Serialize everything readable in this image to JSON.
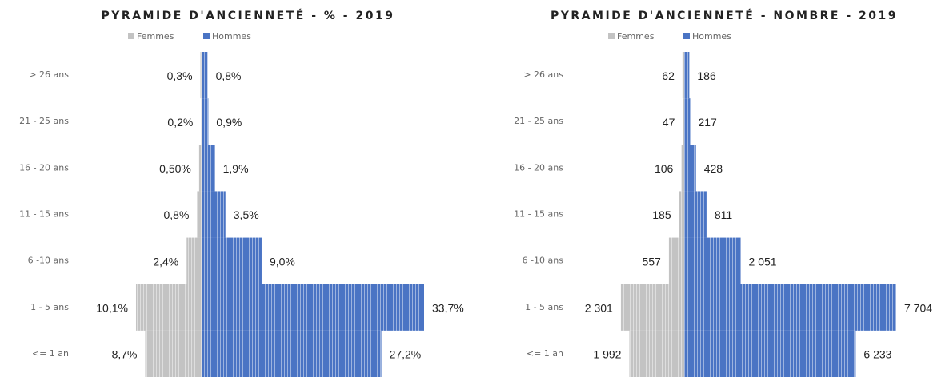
{
  "chart_data": [
    {
      "type": "pyramid",
      "title": "PYRAMIDE D'ANCIENNETÉ - % - 2019",
      "categories": [
        "> 26 ans",
        "21 - 25 ans",
        "16 - 20 ans",
        "11 - 15 ans",
        "6 -10 ans",
        "1 - 5 ans",
        "<= 1 an"
      ],
      "series": [
        {
          "name": "Femmes",
          "color": "#c3c3c3",
          "values": [
            0.3,
            0.2,
            0.5,
            0.8,
            2.4,
            10.1,
            8.7
          ],
          "value_labels": [
            "0,3%",
            "0,2%",
            "0,50%",
            "0,8%",
            "2,4%",
            "10,1%",
            "8,7%"
          ]
        },
        {
          "name": "Hommes",
          "color": "#4a74c4",
          "values": [
            0.8,
            0.9,
            1.9,
            3.5,
            9.0,
            33.7,
            27.2
          ],
          "value_labels": [
            "0,8%",
            "0,9%",
            "1,9%",
            "3,5%",
            "9,0%",
            "33,7%",
            "27,2%"
          ]
        }
      ]
    },
    {
      "type": "pyramid",
      "title": "PYRAMIDE D'ANCIENNETÉ - NOMBRE - 2019",
      "categories": [
        "> 26 ans",
        "21 - 25 ans",
        "16 - 20 ans",
        "11 - 15 ans",
        "6 -10 ans",
        "1 - 5 ans",
        "<= 1 an"
      ],
      "series": [
        {
          "name": "Femmes",
          "color": "#c3c3c3",
          "values": [
            62,
            47,
            106,
            185,
            557,
            2301,
            1992
          ],
          "value_labels": [
            "62",
            "47",
            "106",
            "185",
            "557",
            "2 301",
            "1 992"
          ]
        },
        {
          "name": "Hommes",
          "color": "#4a74c4",
          "values": [
            186,
            217,
            428,
            811,
            2051,
            7704,
            6233
          ],
          "value_labels": [
            "186",
            "217",
            "428",
            "811",
            "2 051",
            "7 704",
            "6 233"
          ]
        }
      ]
    }
  ]
}
